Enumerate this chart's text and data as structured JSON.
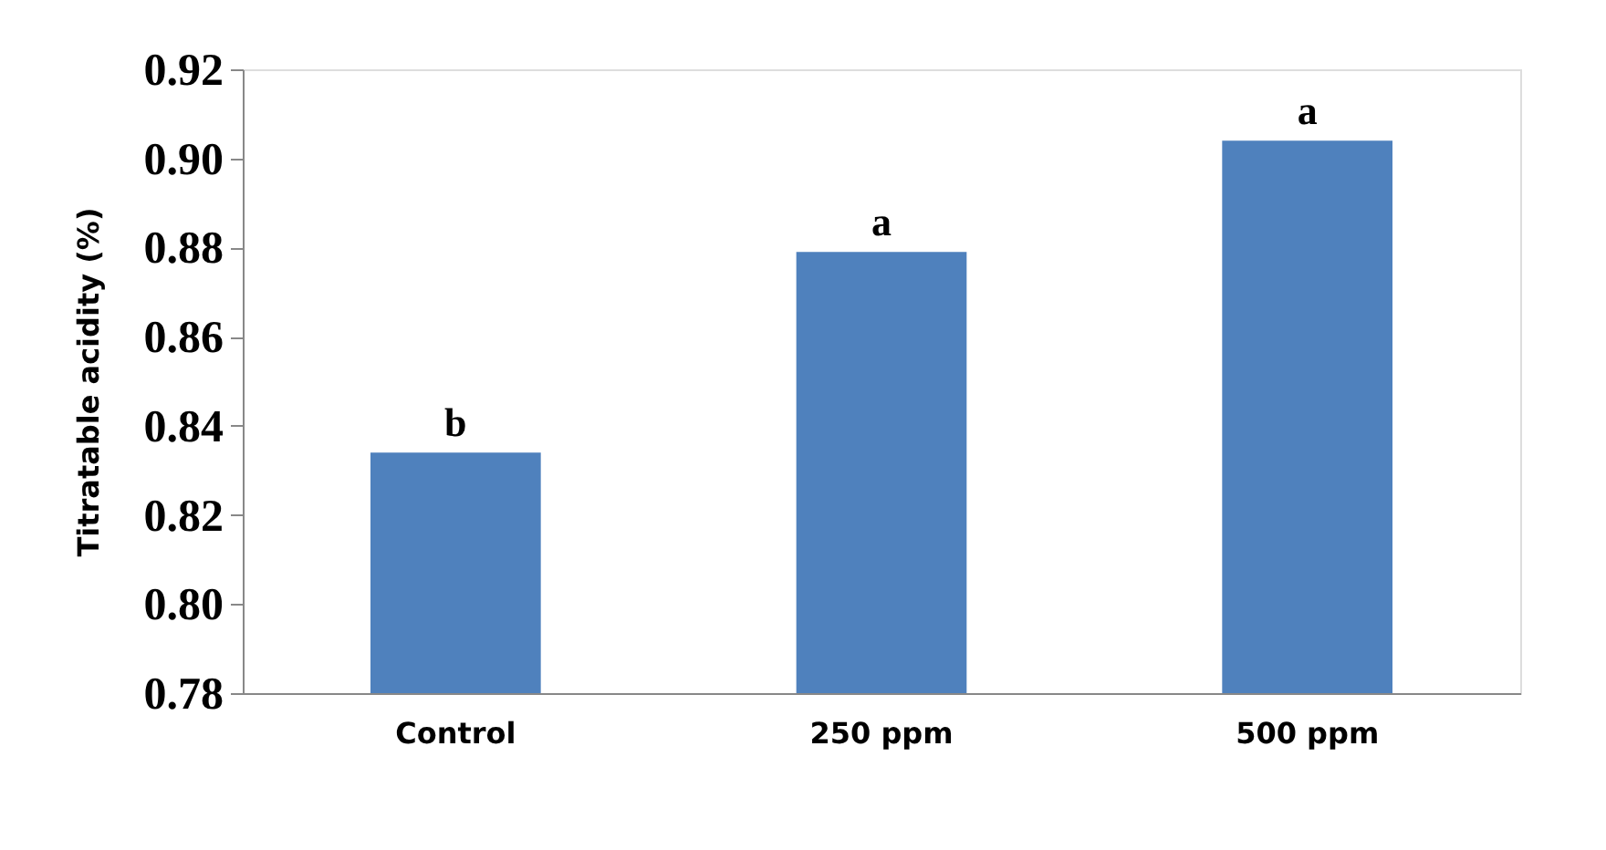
{
  "chart_data": {
    "type": "bar",
    "ylabel": "Titratable acidity (%)",
    "categories": [
      "Control",
      "250 ppm",
      "500 ppm"
    ],
    "values": [
      0.834,
      0.879,
      0.904
    ],
    "color": "#4f81bd",
    "ylim": [
      0.78,
      0.92
    ],
    "yticks": [
      0.78,
      {
        "value": 0.8,
        "label": "0.80"
      },
      0.82,
      0.84,
      0.86,
      0.88,
      {
        "value": 0.9,
        "label": "0.90"
      },
      0.92
    ],
    "grid": false,
    "annotations": [
      {
        "text": "b",
        "x": "Control",
        "y": 0.834
      },
      {
        "text": "a",
        "x": "250 ppm",
        "y": 0.879
      },
      {
        "text": "a",
        "x": "500 ppm",
        "y": 0.904
      }
    ]
  }
}
